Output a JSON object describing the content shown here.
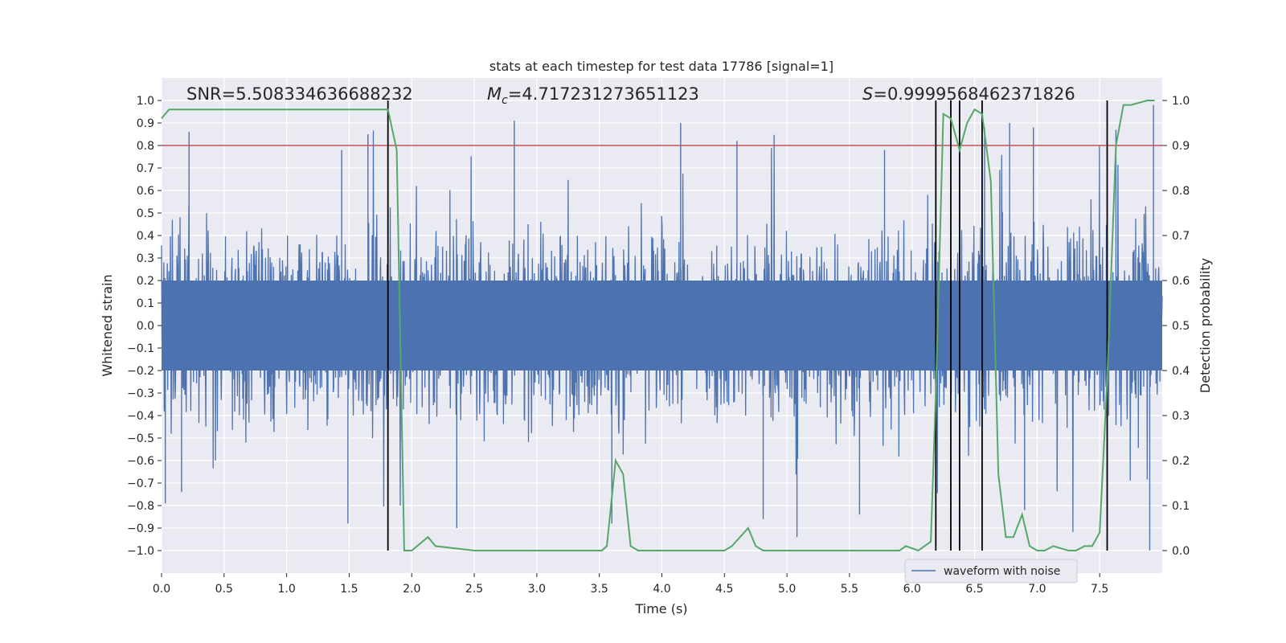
{
  "chart_data": {
    "type": "line",
    "title": "stats at each timestep for test data 17786 [signal=1]",
    "xlabel": "Time (s)",
    "ylabel_left": "Whitened strain",
    "ylabel_right": "Detection probability",
    "xlim": [
      0.0,
      8.0
    ],
    "ylim_left": [
      -1.1,
      1.1
    ],
    "ylim_right": [
      -0.05,
      1.05
    ],
    "x_ticks": [
      "0.0",
      "0.5",
      "1.0",
      "1.5",
      "2.0",
      "2.5",
      "3.0",
      "3.5",
      "4.0",
      "4.5",
      "5.0",
      "5.5",
      "6.0",
      "6.5",
      "7.0",
      "7.5"
    ],
    "y_left_ticks": [
      "1.0",
      "0.9",
      "0.8",
      "0.7",
      "0.6",
      "0.5",
      "0.4",
      "0.3",
      "0.2",
      "0.1",
      "0.0",
      "−0.1",
      "−0.2",
      "−0.3",
      "−0.4",
      "−0.5",
      "−0.6",
      "−0.7",
      "−0.8",
      "−0.9",
      "−1.0"
    ],
    "y_right_ticks": [
      "1.0",
      "0.9",
      "0.8",
      "0.7",
      "0.6",
      "0.5",
      "0.4",
      "0.3",
      "0.2",
      "0.1",
      "0.0"
    ],
    "annotations": {
      "snr": "SNR=5.508334636688232",
      "mc": "=4.717231273651123",
      "s": "=0.9999568462371826"
    },
    "threshold": {
      "value": 0.9,
      "axis": "right",
      "color": "#c44e52"
    },
    "vlines": [
      1.81,
      6.19,
      6.31,
      6.38,
      6.56,
      7.56
    ],
    "legend": {
      "label": "waveform with noise",
      "position": "lower-right"
    },
    "series": [
      {
        "name": "waveform with noise",
        "axis": "left",
        "color": "#4c72b0",
        "description": "dense noisy whitened strain sampled across 0–8 s, amplitude about ±0.5 with spikes up to ±1.0",
        "peaks": [
          {
            "x": 0.22,
            "y": 0.86
          },
          {
            "x": 1.44,
            "y": 0.78
          },
          {
            "x": 1.65,
            "y": 0.85
          },
          {
            "x": 2.82,
            "y": 0.91
          },
          {
            "x": 4.15,
            "y": 0.9
          },
          {
            "x": 4.6,
            "y": 0.82
          },
          {
            "x": 5.78,
            "y": 0.78
          },
          {
            "x": 6.58,
            "y": 0.88
          },
          {
            "x": 6.78,
            "y": 0.9
          },
          {
            "x": 6.97,
            "y": 0.88
          },
          {
            "x": 7.63,
            "y": 0.87
          },
          {
            "x": 7.93,
            "y": 0.98
          },
          {
            "x": 1.49,
            "y": -0.88
          },
          {
            "x": 2.36,
            "y": -0.9
          },
          {
            "x": 3.6,
            "y": -0.88
          },
          {
            "x": 4.81,
            "y": -0.86
          },
          {
            "x": 5.08,
            "y": -0.94
          },
          {
            "x": 5.58,
            "y": -0.84
          },
          {
            "x": 6.9,
            "y": -0.82
          },
          {
            "x": 7.9,
            "y": -1.0
          },
          {
            "x": 0.03,
            "y": -0.79
          },
          {
            "x": 0.16,
            "y": -0.74
          }
        ]
      },
      {
        "name": "detection probability",
        "axis": "right",
        "color": "#55a868",
        "x": [
          0.0,
          0.06,
          0.5,
          1.0,
          1.5,
          1.81,
          1.88,
          1.94,
          2.0,
          2.13,
          2.19,
          2.5,
          3.0,
          3.4,
          3.52,
          3.56,
          3.63,
          3.69,
          3.75,
          3.81,
          4.0,
          4.2,
          4.5,
          4.56,
          4.69,
          4.75,
          4.81,
          5.0,
          5.5,
          5.9,
          5.95,
          6.05,
          6.1,
          6.15,
          6.19,
          6.25,
          6.31,
          6.38,
          6.44,
          6.5,
          6.56,
          6.63,
          6.69,
          6.75,
          6.81,
          6.88,
          6.94,
          7.0,
          7.06,
          7.13,
          7.25,
          7.31,
          7.38,
          7.44,
          7.5,
          7.56,
          7.63,
          7.69,
          7.75,
          7.88,
          7.94
        ],
        "y": [
          0.96,
          0.98,
          0.98,
          0.98,
          0.98,
          0.98,
          0.89,
          0.0,
          0.0,
          0.03,
          0.01,
          0.0,
          0.0,
          0.0,
          0.0,
          0.01,
          0.2,
          0.17,
          0.01,
          0.0,
          0.0,
          0.0,
          0.0,
          0.01,
          0.05,
          0.01,
          0.0,
          0.0,
          0.0,
          0.0,
          0.01,
          0.0,
          0.01,
          0.02,
          0.35,
          0.97,
          0.96,
          0.89,
          0.95,
          0.98,
          0.97,
          0.82,
          0.17,
          0.03,
          0.03,
          0.08,
          0.01,
          0.0,
          0.0,
          0.01,
          0.0,
          0.0,
          0.01,
          0.01,
          0.04,
          0.38,
          0.9,
          0.99,
          0.99,
          1.0,
          1.0
        ]
      }
    ]
  }
}
